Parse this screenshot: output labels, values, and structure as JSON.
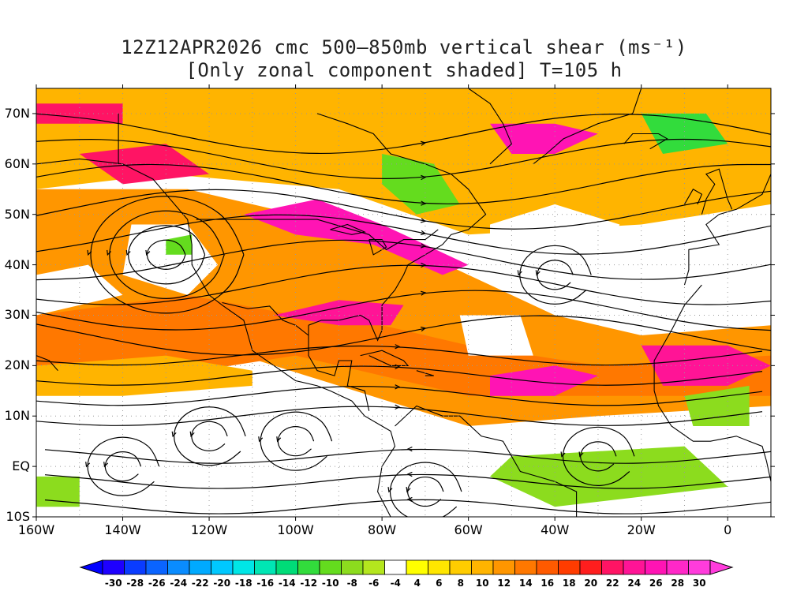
{
  "title": {
    "line1": "12Z12APR2026 cmc 500–850mb vertical shear (ms⁻¹)",
    "line2": "[Only zonal component shaded] T=105 h"
  },
  "map": {
    "region": "North Atlantic and Eastern Pacific",
    "lon_range": [
      -160,
      10
    ],
    "lat_range": [
      -10,
      75
    ],
    "y_axis_labels": [
      "70N",
      "60N",
      "50N",
      "40N",
      "30N",
      "20N",
      "10N",
      "EQ",
      "10S"
    ],
    "y_axis_values": [
      70,
      60,
      50,
      40,
      30,
      20,
      10,
      0,
      -10
    ],
    "x_axis_labels": [
      "160W",
      "140W",
      "120W",
      "100W",
      "80W",
      "60W",
      "40W",
      "20W",
      "0"
    ],
    "x_axis_values": [
      -160,
      -140,
      -120,
      -100,
      -80,
      -60,
      -40,
      -20,
      0
    ],
    "gridlines": "dotted"
  },
  "colorbar": {
    "labels": [
      "-30",
      "-28",
      "-26",
      "-24",
      "-22",
      "-20",
      "-18",
      "-16",
      "-14",
      "-12",
      "-10",
      "-8",
      "-6",
      "-4",
      "4",
      "6",
      "8",
      "10",
      "12",
      "14",
      "16",
      "18",
      "20",
      "22",
      "24",
      "26",
      "28",
      "30"
    ],
    "colors": [
      "#1e00ff",
      "#0a3cff",
      "#0a64ff",
      "#0a8cff",
      "#00aaff",
      "#00c8ff",
      "#00e6e6",
      "#00e6b4",
      "#00dc78",
      "#32dc3c",
      "#64dc1e",
      "#8cdc1e",
      "#b4e61e",
      "#ffffff",
      "#ffff00",
      "#ffe600",
      "#ffcc00",
      "#ffb400",
      "#ff9600",
      "#ff7800",
      "#ff5a00",
      "#ff3c00",
      "#ff1e1e",
      "#ff1464",
      "#ff1496",
      "#ff14b4",
      "#ff28c8",
      "#ff3cdc"
    ],
    "undershoot_color": "#0000ff",
    "overshoot_color": "#ff3cdc"
  }
}
